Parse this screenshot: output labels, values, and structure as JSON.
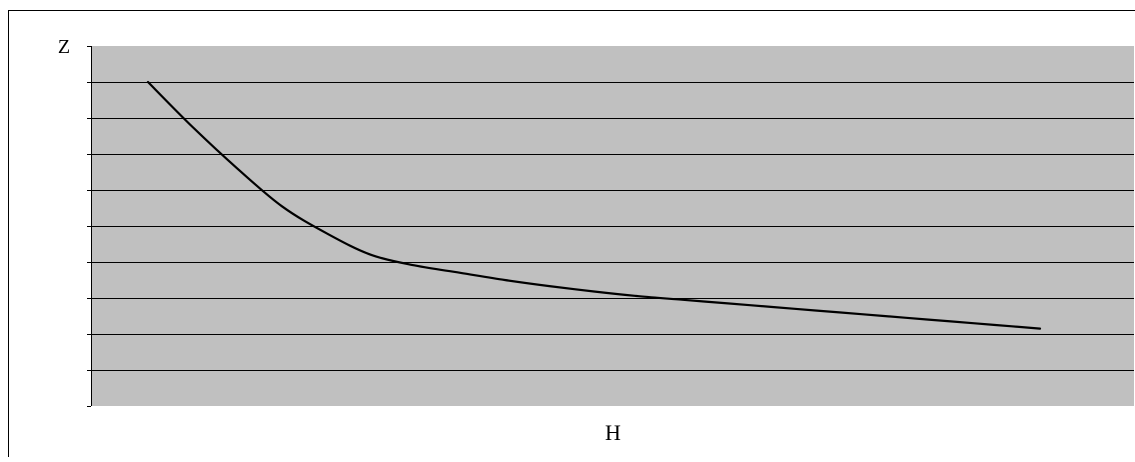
{
  "chart_data": {
    "type": "line",
    "title": "",
    "xlabel": "H",
    "ylabel": "Z",
    "ylim": [
      0,
      9
    ],
    "grid": true,
    "legend": "none",
    "colors": {
      "plot_background": "#c0c0c0",
      "gridline": "#000000",
      "curve": "#000000",
      "axis": "#000000",
      "frame": "#000000"
    },
    "series": [
      {
        "x": [
          0.0,
          0.05,
          0.1,
          0.15,
          0.2,
          0.25,
          0.3,
          0.35,
          0.4,
          0.45,
          0.5,
          0.55,
          0.6,
          0.65,
          0.7,
          0.75,
          0.8,
          0.85,
          0.9,
          0.95,
          1.0
        ],
        "values": [
          9.0,
          7.75,
          6.6,
          5.55,
          4.8,
          4.2,
          3.9,
          3.7,
          3.5,
          3.33,
          3.18,
          3.05,
          2.95,
          2.85,
          2.75,
          2.65,
          2.55,
          2.45,
          2.35,
          2.25,
          2.15
        ]
      }
    ]
  }
}
